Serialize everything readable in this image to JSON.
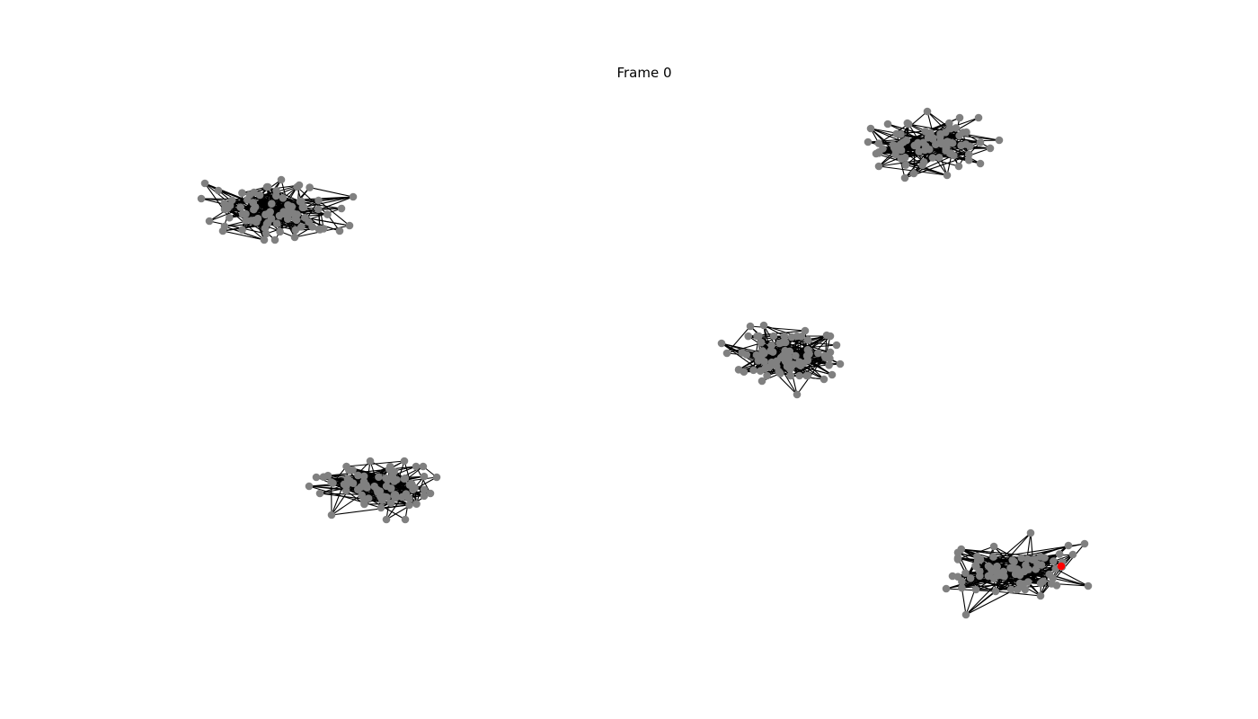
{
  "title": "Frame 0",
  "colors": {
    "node": "#808080",
    "highlight_node": "#ff0000",
    "edge": "#000000",
    "background": "#ffffff"
  },
  "graph": {
    "cluster_count": 5,
    "highlighted_cluster": 4
  }
}
